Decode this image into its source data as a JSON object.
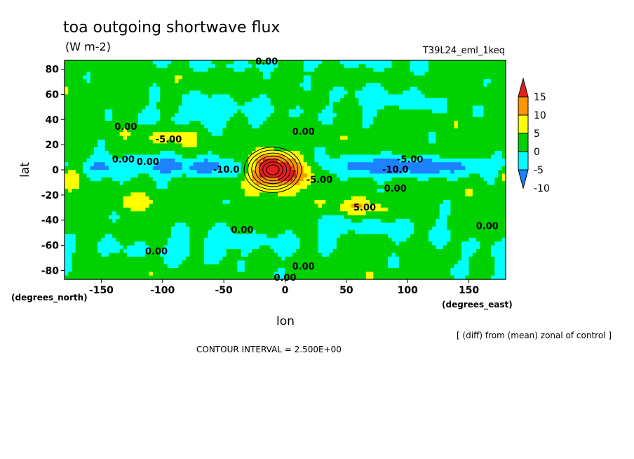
{
  "chart_data": {
    "type": "heatmap",
    "title": "toa outgoing shortwave flux",
    "units": "(W m-2)",
    "experiment": "T39L24_eml_1keq",
    "xlabel": "lon",
    "ylabel": "lat",
    "x_units": "(degrees_east)",
    "y_units": "(degrees_north)",
    "xlim": [
      -180,
      180
    ],
    "ylim": [
      -87,
      87
    ],
    "x_ticks": [
      -150,
      -100,
      -50,
      0,
      50,
      100,
      150
    ],
    "y_ticks": [
      80,
      60,
      40,
      20,
      0,
      -20,
      -40,
      -60,
      -80
    ],
    "x_tick_labels": [
      "-150",
      "-100",
      "-50",
      "0",
      "50",
      "100",
      "150"
    ],
    "y_tick_labels": [
      "80",
      "60",
      "40",
      "20",
      "0",
      "-20",
      "-40",
      "-60",
      "-80"
    ],
    "note": "[ (diff) from (mean) zonal of control ]",
    "contour_interval": "CONTOUR INTERVAL = 2.500E+00",
    "colorbar": {
      "labels": [
        "15",
        "10",
        "5",
        "0",
        "-5",
        "-10"
      ],
      "levels": [
        -10,
        -5,
        0,
        5,
        10,
        15
      ],
      "colors": [
        "#1e82ff",
        "#00ffff",
        "#00d200",
        "#ffff00",
        "#ff9600",
        "#e61e1e"
      ]
    },
    "contour_labels": [
      {
        "text": "0.00",
        "lon": -15,
        "lat": 86
      },
      {
        "text": "0.00",
        "lon": -130,
        "lat": 34
      },
      {
        "text": "-5.00",
        "lon": -95,
        "lat": 24
      },
      {
        "text": "0.00",
        "lon": -132,
        "lat": 8
      },
      {
        "text": "0.00",
        "lon": -112,
        "lat": 6
      },
      {
        "text": "-10.0",
        "lon": -48,
        "lat": 0
      },
      {
        "text": "0.00",
        "lon": 15,
        "lat": 30
      },
      {
        "text": "-5.00",
        "lon": 28,
        "lat": -8
      },
      {
        "text": "-5.00",
        "lon": 102,
        "lat": 8
      },
      {
        "text": "-10.0",
        "lon": 90,
        "lat": 0
      },
      {
        "text": "0.00",
        "lon": 90,
        "lat": -15
      },
      {
        "text": "5.00",
        "lon": 65,
        "lat": -30
      },
      {
        "text": "0.00",
        "lon": -35,
        "lat": -48
      },
      {
        "text": "0.00",
        "lon": -105,
        "lat": -65
      },
      {
        "text": "0.00",
        "lon": 165,
        "lat": -45
      },
      {
        "text": "0.00",
        "lon": 15,
        "lat": -77
      },
      {
        "text": "0.00",
        "lon": 0,
        "lat": -86
      }
    ],
    "field_features": [
      {
        "lon": -10,
        "lat": 0,
        "amp": 22,
        "sx": 13,
        "sy": 9
      },
      {
        "lon": 15,
        "lat": -5,
        "amp": 8,
        "sx": 10,
        "sy": 6
      },
      {
        "lon": -175,
        "lat": -5,
        "amp": 7,
        "sx": 7,
        "sy": 5
      },
      {
        "lon": -85,
        "lat": 2,
        "amp": -9,
        "sx": 45,
        "sy": 6
      },
      {
        "lon": -150,
        "lat": 3,
        "amp": -5,
        "sx": 15,
        "sy": 5
      },
      {
        "lon": 80,
        "lat": 2,
        "amp": -11,
        "sx": 35,
        "sy": 6
      },
      {
        "lon": 145,
        "lat": 3,
        "amp": -6,
        "sx": 25,
        "sy": 5
      },
      {
        "lon": -90,
        "lat": 28,
        "amp": 5,
        "sx": 18,
        "sy": 5
      },
      {
        "lon": 60,
        "lat": -30,
        "amp": 6,
        "sx": 20,
        "sy": 5
      },
      {
        "lon": -120,
        "lat": -25,
        "amp": 4,
        "sx": 15,
        "sy": 5
      },
      {
        "lon": -60,
        "lat": 45,
        "amp": -5,
        "sx": 40,
        "sy": 10
      },
      {
        "lon": 80,
        "lat": 55,
        "amp": -4,
        "sx": 40,
        "sy": 10
      },
      {
        "lon": -60,
        "lat": -60,
        "amp": -4,
        "sx": 60,
        "sy": 10
      },
      {
        "lon": 40,
        "lat": -45,
        "amp": -4,
        "sx": 20,
        "sy": 8
      },
      {
        "lon": 100,
        "lat": -45,
        "amp": -3,
        "sx": 30,
        "sy": 10
      },
      {
        "lon": 160,
        "lat": -70,
        "amp": -3,
        "sx": 30,
        "sy": 10
      },
      {
        "lon": 0,
        "lat": 84,
        "amp": -3,
        "sx": 100,
        "sy": 4
      }
    ]
  }
}
